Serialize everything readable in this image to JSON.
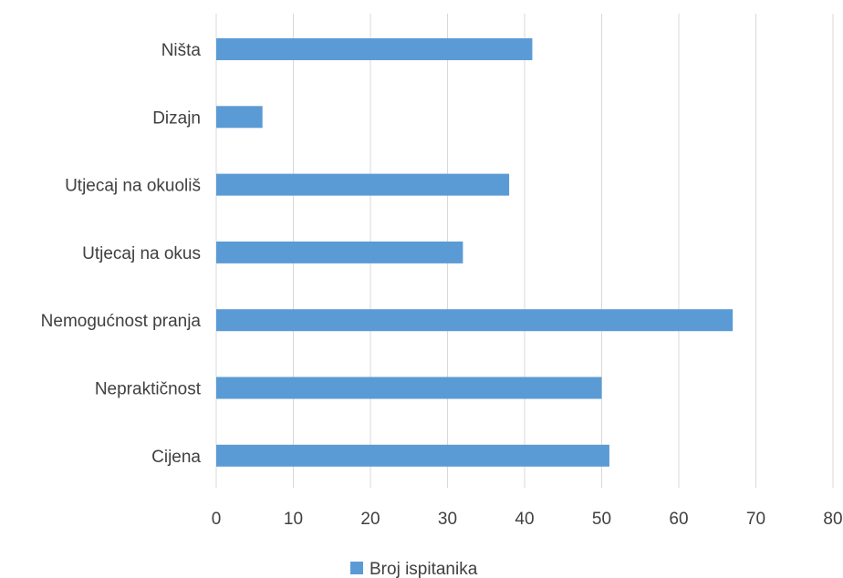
{
  "chart_data": {
    "type": "bar",
    "orientation": "horizontal",
    "categories": [
      "Ništa",
      "Dizajn",
      "Utjecaj na okuoliš",
      "Utjecaj na okus",
      "Nemogućnost pranja",
      "Nepraktičnost",
      "Cijena"
    ],
    "series": [
      {
        "name": "Broj ispitanika",
        "values": [
          41,
          6,
          38,
          32,
          67,
          50,
          51
        ],
        "color": "#5b9bd5"
      }
    ],
    "xlim": [
      0,
      80
    ],
    "xticks": [
      "0",
      "10",
      "20",
      "30",
      "40",
      "50",
      "60",
      "70",
      "80"
    ],
    "grid": true,
    "legend_position": "bottom"
  }
}
